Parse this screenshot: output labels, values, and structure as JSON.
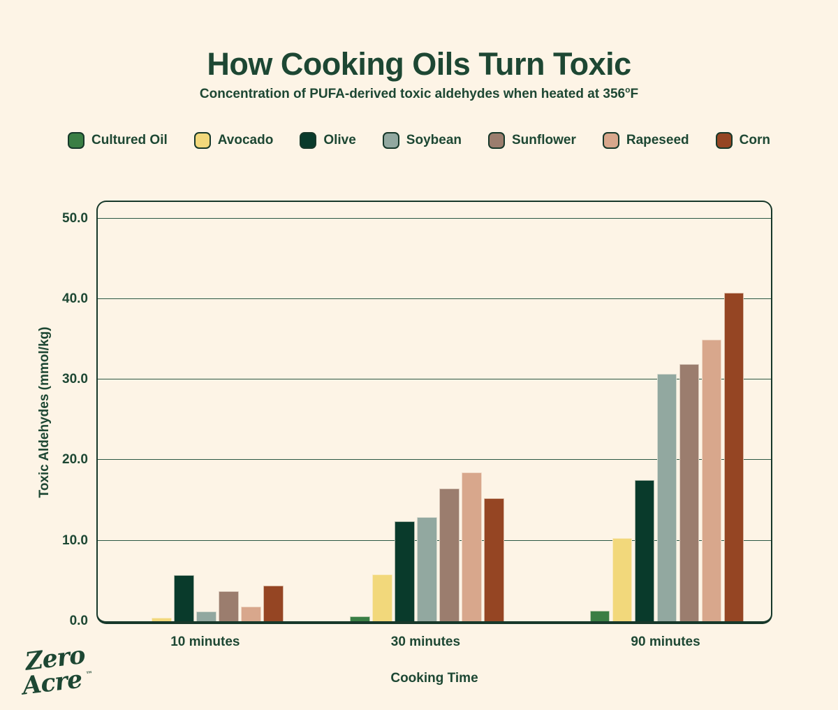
{
  "title": "How Cooking Oils Turn Toxic",
  "subtitle": {
    "prefix": "Concentration of PUFA-derived toxic aldehydes when heated at 356",
    "sup": "o",
    "suffix": "F"
  },
  "brand": {
    "line1": "Zero",
    "line2": "Acre",
    "mark": "™"
  },
  "colors": {
    "background": "#fdf4e6",
    "ink": "#1d4733",
    "frame": "#17382a",
    "gridline": "#2b5743"
  },
  "chart_data": {
    "type": "bar",
    "title": "How Cooking Oils Turn Toxic",
    "subtitle": "Concentration of PUFA-derived toxic aldehydes when heated at 356°F",
    "categories": [
      "10 minutes",
      "30 minutes",
      "90 minutes"
    ],
    "series": [
      {
        "name": "Cultured Oil",
        "color": "#3a7e44",
        "values": [
          0.0,
          0.6,
          1.3
        ]
      },
      {
        "name": "Avocado",
        "color": "#f2d87b",
        "values": [
          0.4,
          5.8,
          10.3
        ]
      },
      {
        "name": "Olive",
        "color": "#093a2b",
        "values": [
          5.7,
          12.4,
          17.5
        ]
      },
      {
        "name": "Soybean",
        "color": "#92a8a0",
        "values": [
          1.2,
          12.9,
          30.7
        ]
      },
      {
        "name": "Sunflower",
        "color": "#9b7d6e",
        "values": [
          3.7,
          16.5,
          31.9
        ]
      },
      {
        "name": "Rapeseed",
        "color": "#d8a78c",
        "values": [
          1.8,
          18.5,
          35.0
        ]
      },
      {
        "name": "Corn",
        "color": "#954523",
        "values": [
          4.4,
          15.3,
          40.8
        ]
      }
    ],
    "xlabel": "Cooking Time",
    "ylabel": "Toxic Aldehydes (mmol/kg)",
    "ylim": [
      0,
      52
    ],
    "yticks": [
      0,
      10,
      20,
      30,
      40,
      50
    ],
    "ytick_labels": [
      "0.0",
      "10.0",
      "20.0",
      "30.0",
      "40.0",
      "50.0"
    ],
    "grid": true,
    "legend_position": "top",
    "group_center_fractions": [
      0.161,
      0.487,
      0.842
    ]
  }
}
